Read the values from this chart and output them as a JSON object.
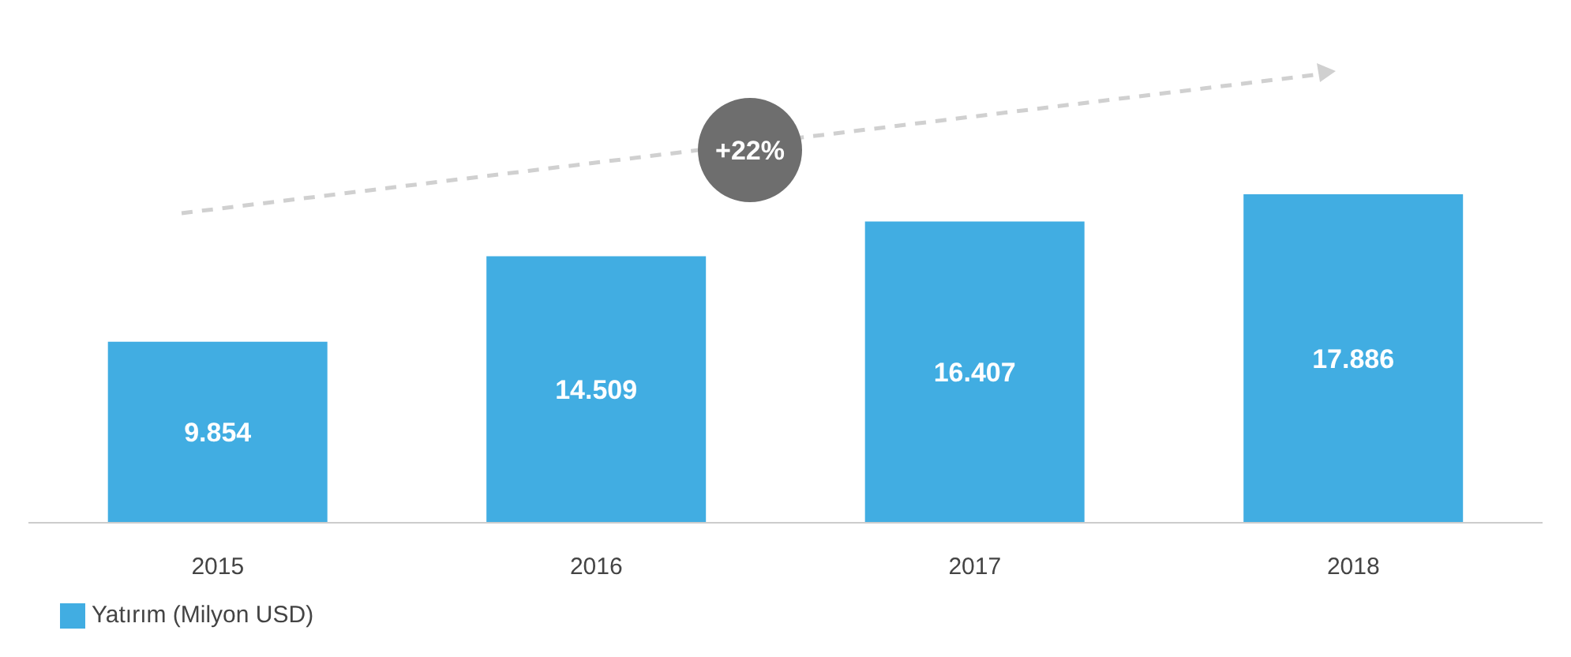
{
  "chart_data": {
    "type": "bar",
    "categories": [
      "2015",
      "2016",
      "2017",
      "2018"
    ],
    "series": [
      {
        "name": "Yatırım (Milyon USD)",
        "color": "#41ade2",
        "values": [
          9854,
          14509,
          16407,
          17886
        ],
        "value_labels": [
          "9.854",
          "14.509",
          "16.407",
          "17.886"
        ]
      }
    ],
    "annotations": [
      "+22%"
    ],
    "legend": "bottom left",
    "grid": false
  }
}
